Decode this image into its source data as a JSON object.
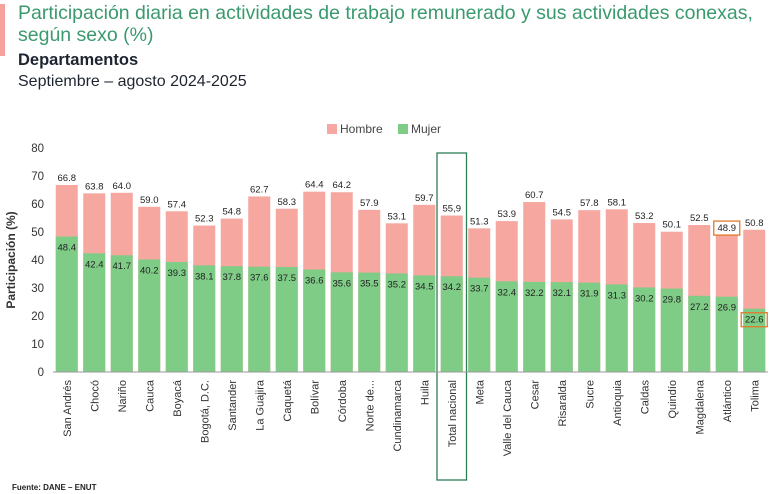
{
  "header": {
    "title": "Participación diaria en actividades de trabajo remunerado y sus actividades conexas, según sexo (%)",
    "subtitle": "Departamentos",
    "period": "Septiembre – agosto 2024-2025"
  },
  "footer": {
    "source": "Fuente: DANE – ENUT"
  },
  "colors": {
    "hombre": "#f6a7a0",
    "mujer": "#7fcc86",
    "title": "#3a9a6e",
    "highlight_box": "#2e7d55",
    "highlight_label": "#e07b2a"
  },
  "chart_data": {
    "type": "bar",
    "stacking": "overlay",
    "ylabel": "Participación (%)",
    "ylim": [
      0,
      80
    ],
    "yticks": [
      0,
      10,
      20,
      30,
      40,
      50,
      60,
      70,
      80
    ],
    "legend": {
      "position": "top-center",
      "entries": [
        "Hombre",
        "Mujer"
      ]
    },
    "grid": false,
    "categories": [
      "San Andrés",
      "Chocó",
      "Nariño",
      "Cauca",
      "Boyacá",
      "Bogotá, D.C.",
      "Santander",
      "La Guajira",
      "Caquetá",
      "Bolívar",
      "Córdoba",
      "Norte de...",
      "Cundinamarca",
      "Huila",
      "Total nacional",
      "Meta",
      "Valle del Cauca",
      "Cesar",
      "Risaralda",
      "Sucre",
      "Antioquia",
      "Caldas",
      "Quindío",
      "Magdalena",
      "Atlántico",
      "Tolima"
    ],
    "series": [
      {
        "name": "Hombre",
        "values": [
          66.8,
          63.8,
          64.0,
          59.0,
          57.4,
          52.3,
          54.8,
          62.7,
          58.3,
          64.4,
          64.2,
          57.9,
          53.1,
          59.7,
          55.9,
          51.3,
          53.9,
          60.7,
          54.5,
          57.8,
          58.1,
          53.2,
          50.1,
          52.5,
          48.9,
          50.8
        ],
        "labels": [
          "66.8",
          "63.8",
          "64.0",
          "59.0",
          "57.4",
          "52.3",
          "54.8",
          "62.7",
          "58.3",
          "64.4",
          "64.2",
          "57.9",
          "53.1",
          "59.7",
          "55,9",
          "51.3",
          "53.9",
          "60.7",
          "54.5",
          "57.8",
          "58.1",
          "53.2",
          "50.1",
          "52.5",
          "48.9",
          "50.8"
        ]
      },
      {
        "name": "Mujer",
        "values": [
          48.4,
          42.4,
          41.7,
          40.2,
          39.3,
          38.1,
          37.8,
          37.6,
          37.5,
          36.6,
          35.6,
          35.5,
          35.2,
          34.5,
          34.2,
          33.7,
          32.4,
          32.2,
          32.1,
          31.9,
          31.3,
          30.2,
          29.8,
          27.2,
          26.9,
          22.6
        ],
        "labels": [
          "48.4",
          "42.4",
          "41.7",
          "40.2",
          "39.3",
          "38.1",
          "37.8",
          "37.6",
          "37.5",
          "36.6",
          "35.6",
          "35.5",
          "35.2",
          "34.5",
          "34.2",
          "33.7",
          "32.4",
          "32.2",
          "32.1",
          "31.9",
          "31.3",
          "30.2",
          "29.8",
          "27.2",
          "26.9",
          "22.6"
        ]
      }
    ],
    "highlighted_category": "Total nacional",
    "highlighted_values": [
      {
        "category": "Atlántico",
        "series": "Hombre"
      },
      {
        "category": "Tolima",
        "series": "Mujer"
      }
    ]
  }
}
